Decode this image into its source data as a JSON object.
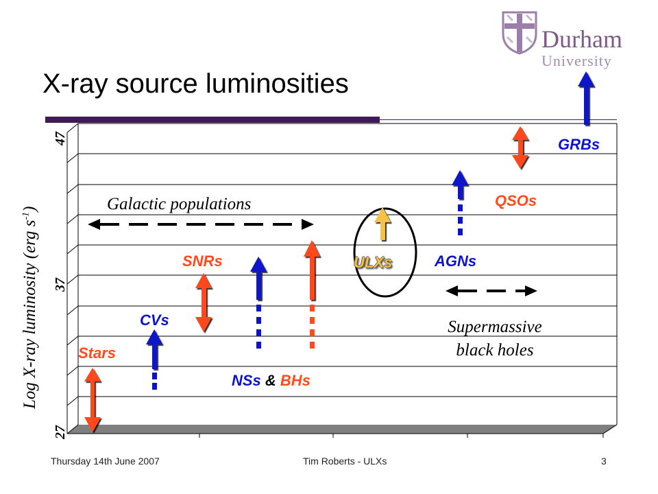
{
  "title": "X-ray source luminosities",
  "logo": {
    "line1": "Durham",
    "line2": "University"
  },
  "y_axis": {
    "label": "Log X-ray luminosity (erg s",
    "label_sup": "-1",
    "label_end": ")",
    "ticks": [
      "27",
      "37",
      "47"
    ]
  },
  "labels": {
    "stars": "Stars",
    "cvs": "CVs",
    "snrs": "SNRs",
    "nss": "NSs",
    "and": " & ",
    "bhs": "BHs",
    "ulxs": "ULXs",
    "agns": "AGNs",
    "qsos": "QSOs",
    "grbs": "GRBs",
    "galactic": "Galactic populations",
    "smbh_1": "Supermassive",
    "smbh_2": "black holes"
  },
  "footer": {
    "date": "Thursday 14th June 2007",
    "author": "Tim Roberts - ULXs",
    "page": "3"
  },
  "colors": {
    "red": "#ff4a1c",
    "blue": "#0d13c8",
    "yellow": "#f5c245",
    "purple": "#3f1a55"
  },
  "chart_data": {
    "type": "range",
    "ylim": [
      27,
      47
    ],
    "ylabel": "Log X-ray luminosity (erg s-1)",
    "sources": [
      {
        "name": "Stars",
        "color": "red"
      },
      {
        "name": "CVs",
        "color": "blue"
      },
      {
        "name": "SNRs",
        "color": "red"
      },
      {
        "name": "NSs",
        "color": "blue"
      },
      {
        "name": "BHs",
        "color": "red"
      },
      {
        "name": "ULXs",
        "color": "yellow"
      },
      {
        "name": "AGNs",
        "color": "blue"
      },
      {
        "name": "QSOs",
        "color": "red"
      },
      {
        "name": "GRBs",
        "color": "blue"
      }
    ]
  }
}
